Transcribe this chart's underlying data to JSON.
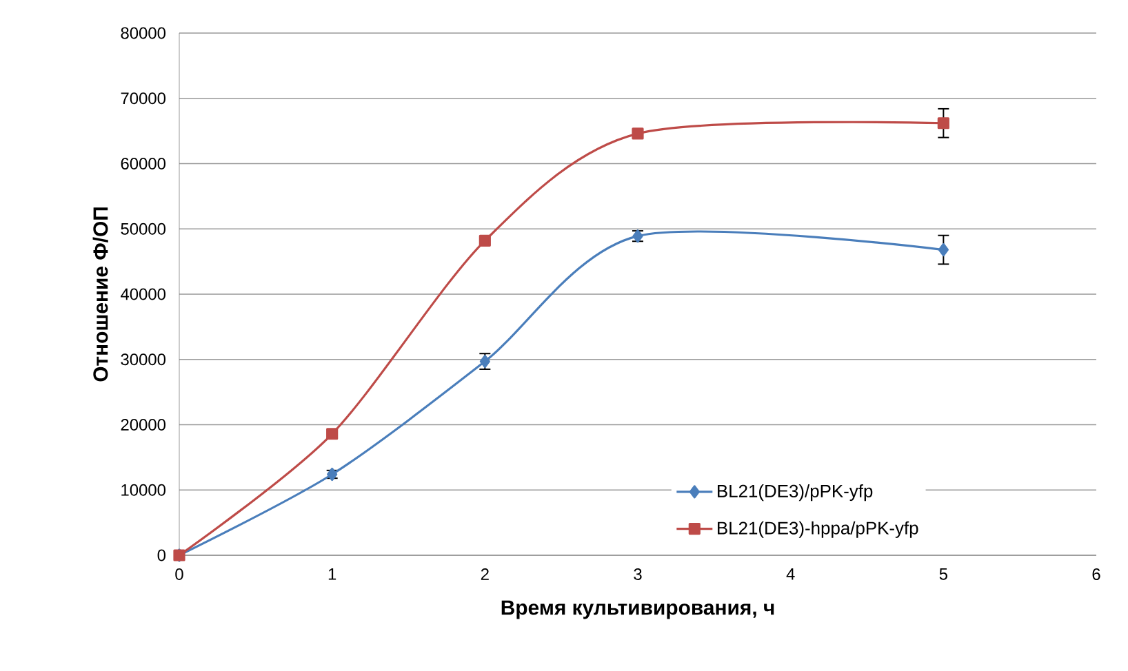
{
  "chart_data": {
    "type": "line",
    "xlabel": "Время культивирования, ч",
    "ylabel": "Отношение Ф/ОП",
    "x": [
      0,
      1,
      2,
      3,
      5
    ],
    "series": [
      {
        "name": "BL21(DE3)/pPK-yfp",
        "color": "#4a7ebb",
        "marker": "diamond",
        "values": [
          0,
          12400,
          29700,
          48900,
          46800
        ],
        "errors": [
          null,
          600,
          1200,
          800,
          2200
        ]
      },
      {
        "name": "BL21(DE3)-hppa/pPK-yfp",
        "color": "#be4b48",
        "marker": "square",
        "values": [
          0,
          18600,
          48200,
          64600,
          66200
        ],
        "errors": [
          null,
          null,
          null,
          null,
          2200
        ]
      }
    ],
    "xlim": [
      0,
      6
    ],
    "xticks": [
      0,
      1,
      2,
      3,
      4,
      5,
      6
    ],
    "ylim": [
      0,
      80000
    ],
    "yticks": [
      0,
      10000,
      20000,
      30000,
      40000,
      50000,
      60000,
      70000,
      80000
    ],
    "grid": "y",
    "legend": "bottom right",
    "line_style": "solid"
  }
}
